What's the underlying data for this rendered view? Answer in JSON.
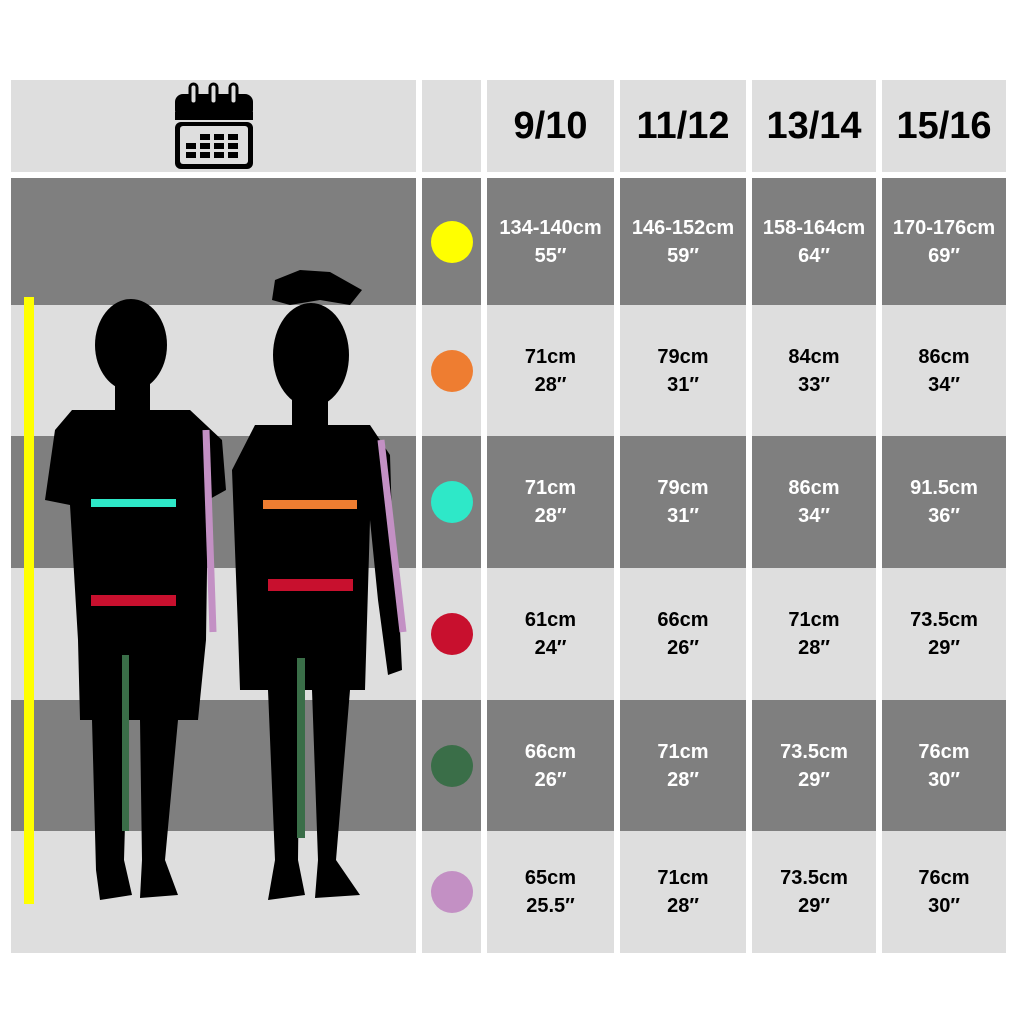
{
  "header": {
    "icon": "calendar-icon",
    "sizes": [
      "9/10",
      "11/12",
      "13/14",
      "15/16"
    ]
  },
  "rows": [
    {
      "marker": "height",
      "color": "#ffff00",
      "values": [
        [
          "134-140cm",
          "55″"
        ],
        [
          "146-152cm",
          "59″"
        ],
        [
          "158-164cm",
          "64″"
        ],
        [
          "170-176cm",
          "69″"
        ]
      ]
    },
    {
      "marker": "chest",
      "color": "#ee7d31",
      "values": [
        [
          "71cm",
          "28″"
        ],
        [
          "79cm",
          "31″"
        ],
        [
          "84cm",
          "33″"
        ],
        [
          "86cm",
          "34″"
        ]
      ]
    },
    {
      "marker": "chest",
      "color": "#2ee8c8",
      "values": [
        [
          "71cm",
          "28″"
        ],
        [
          "79cm",
          "31″"
        ],
        [
          "86cm",
          "34″"
        ],
        [
          "91.5cm",
          "36″"
        ]
      ]
    },
    {
      "marker": "waist",
      "color": "#c8102e",
      "values": [
        [
          "61cm",
          "24″"
        ],
        [
          "66cm",
          "26″"
        ],
        [
          "71cm",
          "28″"
        ],
        [
          "73.5cm",
          "29″"
        ]
      ]
    },
    {
      "marker": "inseam",
      "color": "#3a6e48",
      "values": [
        [
          "66cm",
          "26″"
        ],
        [
          "71cm",
          "28″"
        ],
        [
          "73.5cm",
          "29″"
        ],
        [
          "76cm",
          "30″"
        ]
      ]
    },
    {
      "marker": "sleeve",
      "color": "#c390c4",
      "values": [
        [
          "65cm",
          "25.5″"
        ],
        [
          "71cm",
          "28″"
        ],
        [
          "73.5cm",
          "29″"
        ],
        [
          "76cm",
          "30″"
        ]
      ]
    }
  ]
}
